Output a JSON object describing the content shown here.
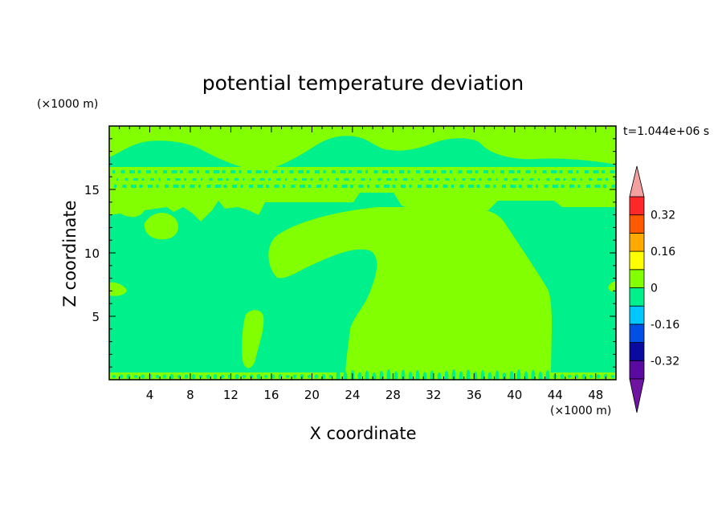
{
  "chart_data": {
    "type": "heatmap",
    "title": "potential temperature deviation",
    "xlabel": "X coordinate",
    "ylabel": "Z coordinate",
    "x_unit": "(×1000 m)",
    "y_unit": "(×1000 m)",
    "time_label": "t=1.044e+06 s",
    "xlim": [
      0,
      50
    ],
    "ylim": [
      0,
      20
    ],
    "x_ticks": [
      4,
      8,
      12,
      16,
      20,
      24,
      28,
      32,
      36,
      40,
      44,
      48
    ],
    "y_ticks": [
      5,
      10,
      15
    ],
    "colorbar": {
      "levels": [
        -0.4,
        -0.32,
        -0.24,
        -0.16,
        -0.08,
        0,
        0.08,
        0.16,
        0.24,
        0.32,
        0.4
      ],
      "labels": [
        "0.32",
        "0.16",
        "0",
        "-0.16",
        "-0.32"
      ],
      "label_values": [
        0.32,
        0.16,
        0,
        -0.16,
        -0.32
      ],
      "colors_bottom_to_top": [
        "#5a0aa0",
        "#0a0aa0",
        "#0050e6",
        "#00c8ff",
        "#00f08c",
        "#82ff00",
        "#ffff00",
        "#ffaa00",
        "#ff5a00",
        "#ff2828"
      ],
      "under_color": "#6e14a0",
      "over_color": "#f5a0a0"
    },
    "field_colors": {
      "negative_small": "#00f08c",
      "positive_small": "#82ff00"
    }
  }
}
